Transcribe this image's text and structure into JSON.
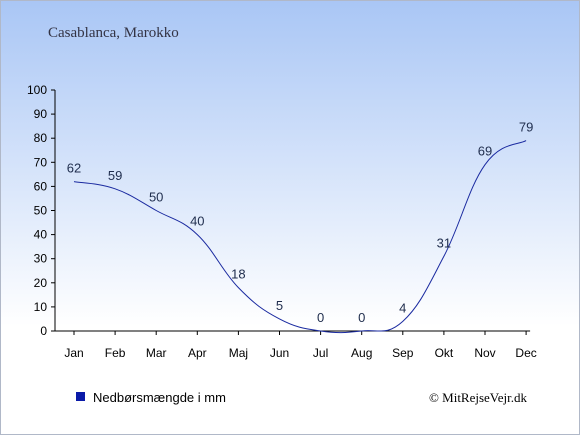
{
  "title": "Casablanca, Marokko",
  "credit": "© MitRejseVejr.dk",
  "colors": {
    "line": "#1a2aa0",
    "legend_swatch": "#0a1aa8",
    "bg_top": "#a9c6f5",
    "bg_bottom": "#ffffff"
  },
  "chart_data": {
    "type": "line",
    "categories": [
      "Jan",
      "Feb",
      "Mar",
      "Apr",
      "Maj",
      "Jun",
      "Jul",
      "Aug",
      "Sep",
      "Okt",
      "Nov",
      "Dec"
    ],
    "series": [
      {
        "name": "Nedbørsmængde i mm",
        "values": [
          62,
          59,
          50,
          40,
          18,
          5,
          0,
          0,
          4,
          31,
          69,
          79
        ]
      }
    ],
    "ylim": [
      0,
      100
    ],
    "yticks": [
      0,
      10,
      20,
      30,
      40,
      50,
      60,
      70,
      80,
      90,
      100
    ],
    "xlabel": "",
    "ylabel": "",
    "grid": false,
    "legend_position": "bottom-left"
  }
}
